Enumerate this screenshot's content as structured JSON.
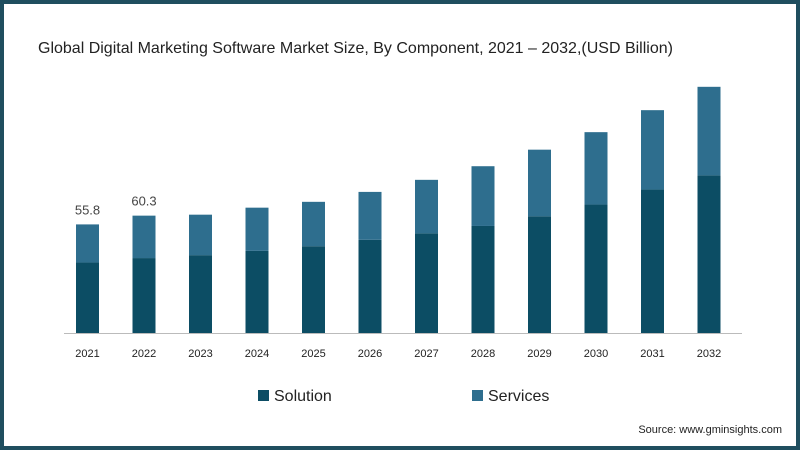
{
  "chart_data": {
    "type": "bar",
    "stacked": true,
    "title": "Global Digital Marketing Software Market Size, By Component, 2021 – 2032,(USD Billion)",
    "xlabel": "",
    "ylabel": "",
    "categories": [
      "2021",
      "2022",
      "2023",
      "2024",
      "2025",
      "2026",
      "2027",
      "2028",
      "2029",
      "2030",
      "2031",
      "2032"
    ],
    "series": [
      {
        "name": "Solution",
        "color": "#0c4d64",
        "values": [
          36.2,
          38.5,
          40.0,
          42.2,
          44.6,
          47.9,
          51.2,
          55.0,
          60.0,
          66.0,
          73.7,
          81.0
        ]
      },
      {
        "name": "Services",
        "color": "#2e6e8e",
        "values": [
          19.6,
          21.8,
          20.8,
          22.2,
          22.8,
          24.6,
          27.5,
          30.7,
          34.2,
          37.2,
          40.8,
          45.5
        ]
      }
    ],
    "total_labels": [
      "55.8",
      "60.3",
      "",
      "",
      "",
      "",
      "",
      "",
      "",
      "",
      "",
      ""
    ],
    "ylim": [
      0,
      130
    ],
    "grid": false,
    "legend_position": "bottom"
  },
  "source": "Source: www.gminsights.com"
}
